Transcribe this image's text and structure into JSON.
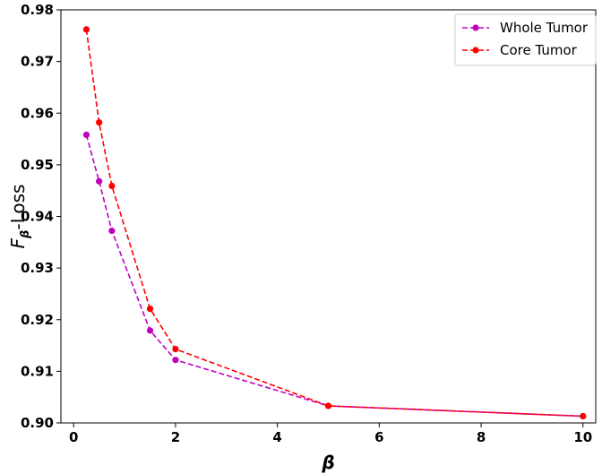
{
  "chart_data": {
    "type": "line",
    "title": "",
    "xlabel": "β",
    "ylabel": {
      "main": "F",
      "sub": "β",
      "suffix": "-Loss"
    },
    "xlim": [
      -0.25,
      10.25
    ],
    "ylim": [
      0.9,
      0.98
    ],
    "xticks": [
      0,
      2,
      4,
      6,
      8,
      10
    ],
    "xtick_labels": [
      "0",
      "2",
      "4",
      "6",
      "8",
      "10"
    ],
    "yticks": [
      0.9,
      0.91,
      0.92,
      0.93,
      0.94,
      0.95,
      0.96,
      0.97,
      0.98
    ],
    "ytick_labels": [
      "0.90",
      "0.91",
      "0.92",
      "0.93",
      "0.94",
      "0.95",
      "0.96",
      "0.97",
      "0.98"
    ],
    "grid": false,
    "legend_position": "top-right",
    "series": [
      {
        "name": "Whole Tumor",
        "color": "#bf00bf",
        "linestyle": "dashed",
        "marker": "circle",
        "x": [
          0.25,
          0.5,
          0.75,
          1.5,
          2,
          5,
          10
        ],
        "y": [
          0.9558,
          0.9468,
          0.9372,
          0.9179,
          0.9122,
          0.9033,
          0.9013
        ]
      },
      {
        "name": "Core Tumor",
        "color": "#ff0000",
        "linestyle": "dashed",
        "marker": "circle",
        "x": [
          0.25,
          0.5,
          0.75,
          1.5,
          2,
          5,
          10
        ],
        "y": [
          0.9762,
          0.9582,
          0.9459,
          0.9221,
          0.9143,
          0.9033,
          0.9013
        ]
      }
    ]
  }
}
